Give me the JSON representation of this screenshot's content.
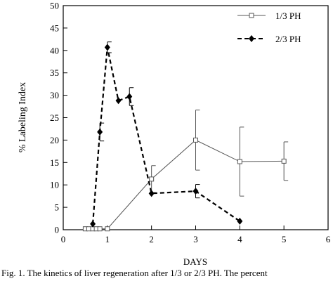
{
  "chart_data": {
    "type": "line",
    "xlabel": "DAYS",
    "ylabel": "% Labeling Index",
    "xlim": [
      0,
      6
    ],
    "ylim": [
      0,
      50
    ],
    "x_ticks": [
      0,
      1,
      2,
      3,
      4,
      5,
      6
    ],
    "y_ticks": [
      0,
      5,
      10,
      15,
      20,
      25,
      30,
      35,
      40,
      45,
      50
    ],
    "grid": false,
    "legend_position": "top-right",
    "series": [
      {
        "name": "1/3 PH",
        "marker": "open-square",
        "line_style": "solid",
        "color": "#555555",
        "x": [
          0.5,
          0.58,
          0.67,
          0.75,
          0.83,
          1.0,
          2.0,
          3.0,
          4.0,
          5.0
        ],
        "y": [
          0.2,
          0.2,
          0.2,
          0.2,
          0.2,
          0.2,
          11.3,
          20.0,
          15.2,
          15.3
        ],
        "err": [
          0,
          0,
          0,
          0,
          0,
          0,
          3.0,
          6.7,
          7.7,
          4.3
        ]
      },
      {
        "name": "2/3 PH",
        "marker": "filled-diamond",
        "line_style": "dashed",
        "color": "#000000",
        "x": [
          0.67,
          0.83,
          1.0,
          1.25,
          1.5,
          2.0,
          3.0,
          4.0
        ],
        "y": [
          1.3,
          21.8,
          40.7,
          28.8,
          29.7,
          8.1,
          8.6,
          1.9
        ],
        "err": [
          0,
          2.0,
          1.2,
          0,
          2.0,
          0,
          1.5,
          0
        ]
      }
    ]
  },
  "caption": "Fig. 1. The kinetics of liver regeneration after 1/3 or 2/3 PH. The percent"
}
